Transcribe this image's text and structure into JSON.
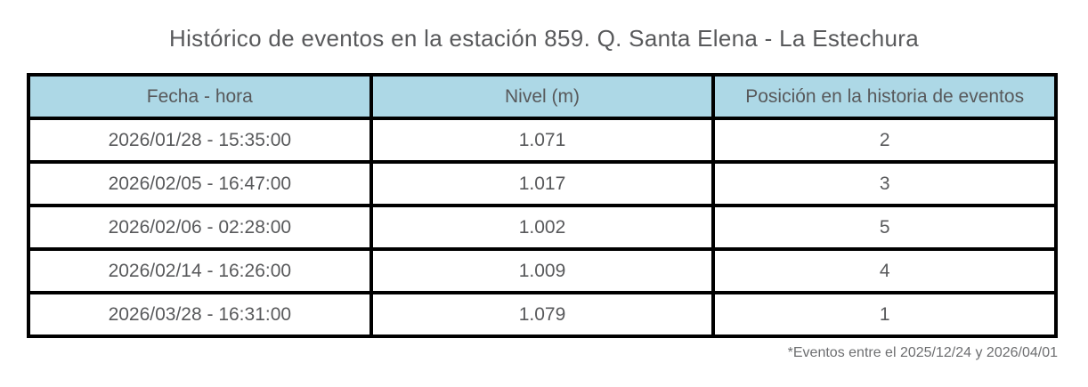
{
  "chart_data": {
    "type": "table",
    "title": "Histórico de eventos en la estación 859. Q. Santa Elena - La Estechura",
    "columns": [
      "Fecha - hora",
      "Nivel (m)",
      "Posición en la historia de eventos"
    ],
    "rows": [
      [
        "2026/01/28 - 15:35:00",
        "1.071",
        "2"
      ],
      [
        "2026/02/05 - 16:47:00",
        "1.017",
        "3"
      ],
      [
        "2026/02/06 - 02:28:00",
        "1.002",
        "5"
      ],
      [
        "2026/02/14 - 16:26:00",
        "1.009",
        "4"
      ],
      [
        "2026/03/28 - 16:31:00",
        "1.079",
        "1"
      ]
    ],
    "footnote": "*Eventos entre el 2025/12/24 y 2026/04/01",
    "layout": {
      "header_position": "top",
      "grid": "full-borders"
    }
  },
  "colors": {
    "header_bg": "#add8e6",
    "border": "#000000",
    "text": "#58595b",
    "background": "#ffffff"
  }
}
